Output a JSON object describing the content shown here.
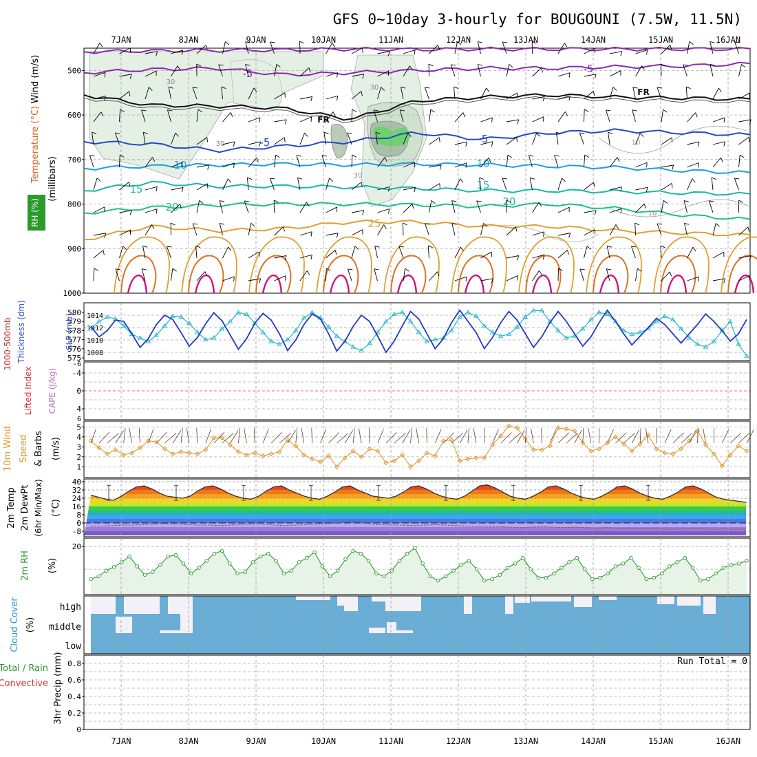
{
  "title": "GFS 0~10day 3-hourly for BOUGOUNI (7.5W, 11.5N)",
  "dates": [
    "7JAN",
    "8JAN",
    "9JAN",
    "10JAN",
    "11JAN",
    "12JAN",
    "13JAN",
    "14JAN",
    "15JAN",
    "16JAN"
  ],
  "run_total": "Run Total = 0",
  "colors": {
    "purple": "#8a2ab0",
    "black": "#111111",
    "blue": "#2448c8",
    "cyan": "#1aa0e0",
    "teal": "#18b8a8",
    "green": "#20c090",
    "orange": "#e0a030",
    "dark_orange": "#e07020",
    "magenta": "#d0107a",
    "rh_green": "#2a9a2a",
    "cloud_blue": "#6aaed6",
    "cloud_white": "#f3f0f8",
    "sounding_fill": "#e4f0e4"
  },
  "chart_data": [
    {
      "panel": "sounding",
      "type": "heatmap",
      "ylabel_parts": [
        "Wind (m/s)",
        "Temperature (°C)",
        "RH (%)",
        "(millibars)"
      ],
      "yticks": [
        500,
        600,
        700,
        800,
        900,
        1000
      ],
      "ylim": [
        1000,
        450
      ],
      "isotherm_labels": [
        "-5",
        "-5",
        "FR",
        "FR",
        "-5",
        "-5",
        "10",
        "10",
        "15",
        "15",
        "20",
        "20",
        "25"
      ],
      "rh_labels": [
        "30",
        "30",
        "30",
        "30",
        "10",
        "10"
      ],
      "isotherms": [
        {
          "level": "-10",
          "color": "purple",
          "values_mb": [
            458,
            456,
            455,
            454,
            452,
            453,
            452,
            452,
            452,
            452,
            452
          ]
        },
        {
          "level": "-5",
          "color": "purple",
          "values_mb": [
            505,
            498,
            495,
            510,
            505,
            500,
            495,
            495,
            492,
            490,
            485
          ]
        },
        {
          "level": "FR",
          "color": "black",
          "values_mb": [
            555,
            578,
            580,
            585,
            610,
            568,
            560,
            555,
            560,
            562,
            565
          ]
        },
        {
          "level": "-5",
          "color": "blue",
          "values_mb": [
            660,
            665,
            680,
            670,
            660,
            640,
            655,
            640,
            635,
            640,
            645
          ]
        },
        {
          "level": "10",
          "color": "cyan",
          "values_mb": [
            720,
            715,
            712,
            710,
            712,
            710,
            712,
            715,
            718,
            725,
            730
          ]
        },
        {
          "level": "15",
          "color": "teal",
          "values_mb": [
            770,
            752,
            760,
            760,
            762,
            765,
            770,
            770,
            772,
            775,
            778
          ]
        },
        {
          "level": "20",
          "color": "green",
          "values_mb": [
            820,
            808,
            802,
            800,
            800,
            802,
            805,
            800,
            810,
            825,
            835
          ]
        },
        {
          "level": "25",
          "color": "orange",
          "values_mb": [
            880,
            850,
            860,
            855,
            840,
            840,
            850,
            850,
            860,
            865,
            870
          ]
        }
      ]
    },
    {
      "panel": "thickness_slp",
      "type": "line",
      "ylabel_parts": [
        "1000-500mb",
        "Thickness (dm)",
        "SLP (mb)"
      ],
      "yticks_left": [
        575,
        576,
        577,
        578,
        579,
        580
      ],
      "yticks_right": [
        1008,
        1010,
        1012,
        1014
      ],
      "series": [
        {
          "name": "SLP",
          "axis": "right",
          "color": "#2038c8",
          "values": [
            1012.2,
            1010.5,
            1011.5,
            1013.2,
            1013.0,
            1011.0,
            1008.8,
            1010.2,
            1012.5,
            1014.0,
            1013.3,
            1011.2,
            1009.0,
            1010.4,
            1012.6,
            1014.4,
            1013.1,
            1010.8,
            1008.5,
            1010.2,
            1012.7,
            1014.3,
            1013.2,
            1011.0,
            1008.3,
            1010.0,
            1012.5,
            1014.2,
            1013.4,
            1011.0,
            1008.2,
            1009.8,
            1012.2,
            1014.0,
            1013.0,
            1010.6,
            1008.0,
            1009.8,
            1012.3,
            1014.6,
            1013.4,
            1011.0,
            1008.6,
            1010.2,
            1012.8,
            1014.8,
            1013.0,
            1011.2,
            1008.6,
            1010.4,
            1012.8,
            1014.6,
            1013.2,
            1011.0,
            1008.8,
            1010.5,
            1012.8,
            1014.6,
            1013.0,
            1011.0,
            1009.0,
            1010.5,
            1012.8,
            1014.8,
            1013.0,
            1011.0,
            1009.2,
            1010.6,
            1012.0,
            1013.5,
            1012.5,
            1011.0,
            1009.5,
            1011.0,
            1012.5,
            1014.2,
            1013.0,
            1011.5,
            1009.8,
            1011.0,
            1013.3
          ]
        },
        {
          "name": "Thickness",
          "axis": "left",
          "color": "#20b8c8",
          "values": [
            578.2,
            579.0,
            579.5,
            579.3,
            578.5,
            577.6,
            577.2,
            576.8,
            577.5,
            578.5,
            579.6,
            579.5,
            578.8,
            577.8,
            577.0,
            577.2,
            578.2,
            579.0,
            580.0,
            579.8,
            578.8,
            577.8,
            576.8,
            576.5,
            577.0,
            578.0,
            579.4,
            580.0,
            579.4,
            578.4,
            577.4,
            576.8,
            576.2,
            575.8,
            576.6,
            577.8,
            579.0,
            579.8,
            580.0,
            579.0,
            577.8,
            576.8,
            577.0,
            577.2,
            578.0,
            579.5,
            580.0,
            579.6,
            578.5,
            577.8,
            577.4,
            577.6,
            578.4,
            579.5,
            580.2,
            580.2,
            579.0,
            578.0,
            577.2,
            577.4,
            578.2,
            579.2,
            580.0,
            579.8,
            579.0,
            578.0,
            577.6,
            577.8,
            578.2,
            579.0,
            579.6,
            579.2,
            578.2,
            577.2,
            576.5,
            576.2,
            576.8,
            578.0,
            579.0,
            576.5,
            575.2
          ]
        }
      ]
    },
    {
      "panel": "cape_li",
      "type": "line",
      "ylabel_parts": [
        "Lifted Index",
        "CAPE (J/kg)"
      ],
      "yticks": [
        "-4",
        "0",
        "4"
      ],
      "ylim": [
        6,
        -6
      ],
      "series": []
    },
    {
      "panel": "wind10m",
      "type": "line",
      "ylabel_parts": [
        "10m Wind",
        "Speed",
        "& Barbs",
        "(m/s)"
      ],
      "yticks": [
        1,
        2,
        3,
        4,
        5
      ],
      "series": [
        {
          "name": "10m wind speed",
          "color": "#e09a30",
          "values": [
            3.6,
            2.9,
            2.3,
            2.7,
            2.2,
            2.4,
            2.9,
            3.6,
            3.5,
            2.8,
            2.3,
            2.5,
            2.4,
            2.3,
            2.7,
            3.9,
            3.9,
            3.2,
            2.5,
            2.2,
            2.4,
            2.1,
            2.3,
            2.5,
            3.7,
            3.1,
            2.2,
            1.8,
            1.5,
            2.1,
            1.0,
            1.9,
            2.6,
            2.0,
            2.8,
            2.6,
            1.4,
            1.6,
            2.2,
            1.0,
            1.6,
            2.4,
            2.1,
            3.6,
            3.7,
            1.6,
            1.8,
            1.9,
            1.9,
            3.2,
            4.1,
            5.1,
            4.9,
            3.8,
            2.7,
            2.7,
            3.1,
            4.9,
            4.8,
            4.6,
            3.4,
            2.6,
            2.8,
            3.4,
            4.0,
            3.3,
            2.6,
            3.3,
            4.2,
            2.8,
            2.4,
            2.3,
            2.8,
            3.6,
            4.6,
            3.2,
            2.3,
            1.1,
            2.2,
            3.1,
            2.6
          ]
        }
      ]
    },
    {
      "panel": "temperature",
      "type": "area",
      "ylabel_parts": [
        "2m Temp",
        "2m DewPt",
        "(6hr Min/Max)",
        "(°C)"
      ],
      "yticks": [
        "40",
        "32",
        "24",
        "16",
        "8",
        "0",
        "-8"
      ],
      "series": [
        {
          "name": "2m Temp",
          "color": "#333333",
          "values": [
            27,
            25,
            23,
            22,
            26,
            31,
            35,
            36,
            33,
            29,
            26,
            25,
            24,
            26,
            31,
            35,
            36,
            33,
            29,
            26,
            24,
            23,
            26,
            31,
            35,
            36,
            32,
            29,
            26,
            24,
            23,
            26,
            30,
            35,
            36,
            32,
            29,
            26,
            25,
            24,
            26,
            30,
            35,
            36,
            33,
            29,
            26,
            24,
            23,
            26,
            31,
            36,
            37,
            34,
            30,
            26,
            24,
            23,
            26,
            30,
            35,
            36,
            33,
            29,
            26,
            24,
            23,
            26,
            30,
            35,
            36,
            33,
            29,
            26,
            24,
            23,
            26,
            30,
            35,
            36,
            33,
            29,
            25,
            23,
            22,
            21,
            20
          ]
        },
        {
          "name": "2m DewPt",
          "color": "#8a5a3a",
          "values": [
            -3,
            -3,
            -2.5,
            -2,
            -2,
            -1.5,
            -1,
            -0.5,
            -1,
            -1.5,
            -2,
            -2,
            -2.5,
            -2,
            -1.5,
            -1,
            -1,
            -2,
            -2.5,
            -2,
            -1.5,
            -1,
            -0.5,
            0,
            2,
            1,
            -1,
            -1.5,
            -2,
            -2,
            -2.5,
            -2,
            -1.5,
            -2,
            -2.5,
            -3,
            -3.5,
            -3,
            -3.5,
            -4,
            -4.5,
            -4,
            -3.5,
            -4,
            -4.5,
            -4,
            -4.5,
            -5,
            -4.5,
            -5,
            -5.5,
            -5,
            -5,
            -5.5,
            -6,
            -5.5,
            -5,
            -5.5,
            -6,
            -5.5,
            -6,
            -5.8
          ]
        }
      ]
    },
    {
      "panel": "rh2m",
      "type": "area",
      "ylabel_parts": [
        "2m RH",
        "(%)"
      ],
      "yticks": [
        20
      ],
      "series": [
        {
          "name": "2m RH",
          "color": "#2a9a2a",
          "values": [
            8.5,
            9.5,
            11.5,
            12.8,
            14.5,
            16.5,
            13.0,
            10.0,
            11.0,
            13.5,
            16.5,
            17.0,
            14.0,
            10.5,
            12.5,
            15.0,
            17.5,
            18.5,
            14.0,
            10.5,
            11.0,
            14.5,
            16.5,
            17.5,
            15.0,
            10.5,
            11.5,
            14.5,
            16.0,
            18.0,
            13.0,
            9.5,
            11.5,
            15.5,
            18.5,
            17.5,
            15.0,
            10.5,
            9.5,
            11.5,
            15.0,
            17.5,
            19.5,
            14.0,
            9.5,
            8.0,
            9.5,
            11.5,
            13.5,
            15.0,
            12.0,
            8.0,
            8.5,
            10.0,
            12.5,
            14.0,
            16.0,
            12.0,
            9.0,
            9.0,
            10.5,
            12.5,
            14.5,
            16.0,
            12.0,
            8.5,
            9.0,
            10.5,
            13.0,
            14.0,
            16.0,
            12.5,
            8.5,
            9.0,
            10.5,
            13.0,
            14.5,
            16.0,
            12.5,
            8.0,
            8.5,
            10.5,
            12.5,
            13.5,
            14.0,
            15.0
          ]
        }
      ]
    },
    {
      "panel": "cloud_cover",
      "type": "heatmap",
      "ylabel_parts": [
        "Cloud Cover",
        "(%)"
      ],
      "rows": [
        "high",
        "middle",
        "low"
      ]
    },
    {
      "panel": "precip",
      "type": "bar",
      "ylabel_parts": [
        "Total / Rain",
        "Convective",
        "3hr Precip (mm)"
      ],
      "yticks": [
        "0",
        "0.2",
        "0.4",
        "0.6",
        "0.8"
      ],
      "ylim": [
        0,
        0.9
      ],
      "values": []
    }
  ]
}
